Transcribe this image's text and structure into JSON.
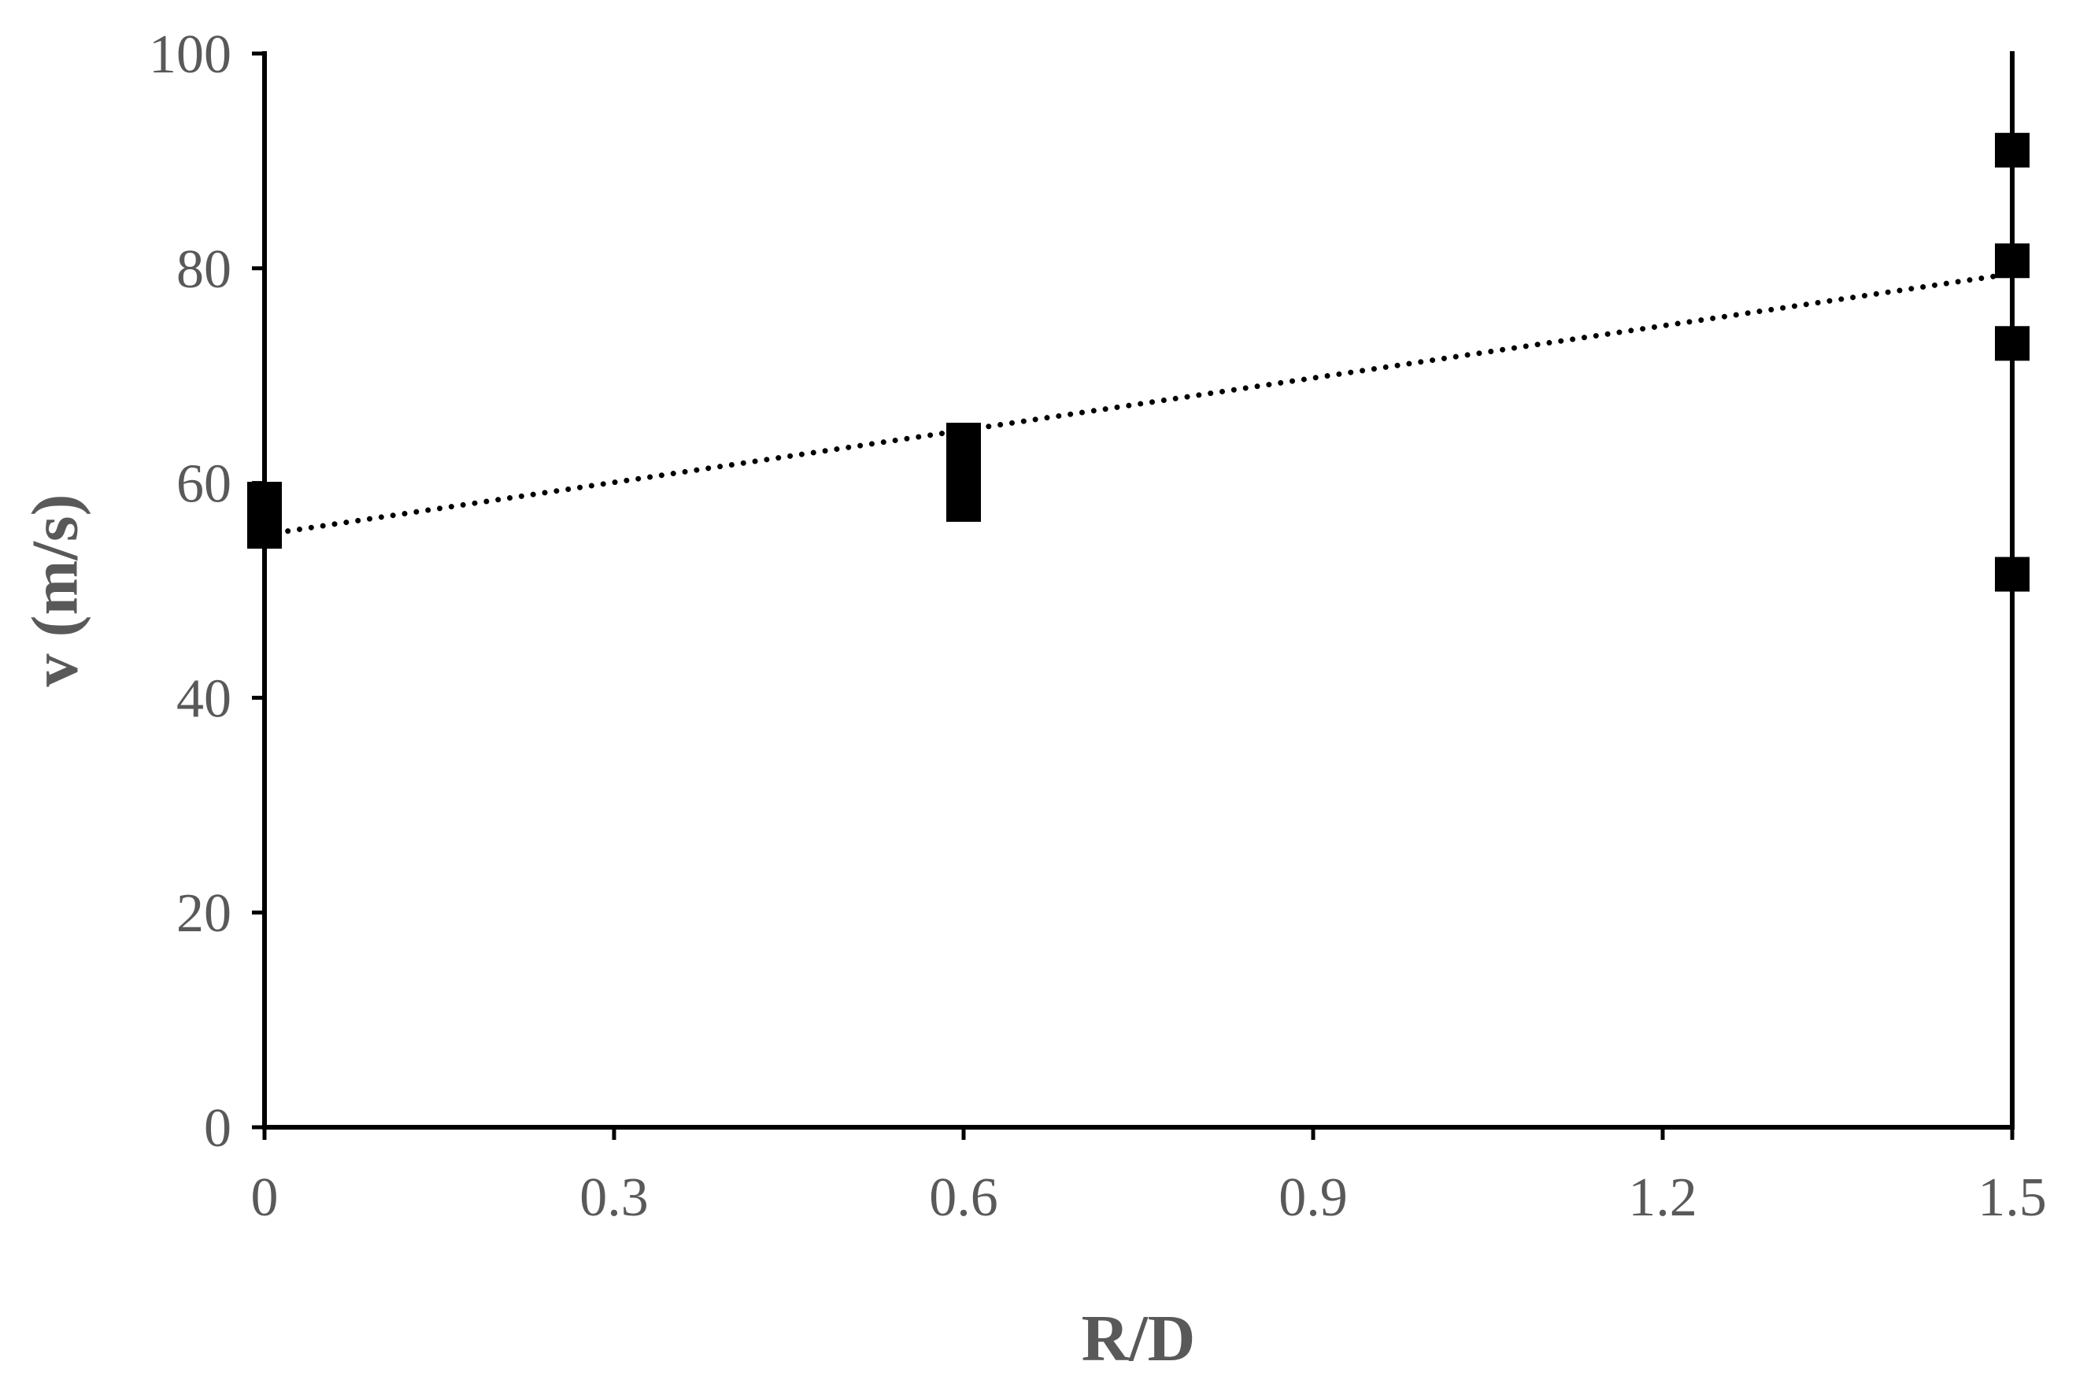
{
  "chart_data": {
    "type": "scatter",
    "title": "",
    "xlabel": "R/D",
    "ylabel": "v (m/s)",
    "xlim": [
      0,
      1.5
    ],
    "ylim": [
      0,
      100
    ],
    "xticks": [
      {
        "value": 0,
        "label": "0"
      },
      {
        "value": 0.3,
        "label": "0.3"
      },
      {
        "value": 0.6,
        "label": "0.6"
      },
      {
        "value": 0.9,
        "label": "0.9"
      },
      {
        "value": 1.2,
        "label": "1.2"
      },
      {
        "value": 1.5,
        "label": "1.5"
      }
    ],
    "yticks": [
      {
        "value": 0,
        "label": "0"
      },
      {
        "value": 20,
        "label": "20"
      },
      {
        "value": 40,
        "label": "40"
      },
      {
        "value": 60,
        "label": "60"
      },
      {
        "value": 80,
        "label": "80"
      },
      {
        "value": 100,
        "label": "100"
      }
    ],
    "grid": false,
    "legend": "none",
    "series": [
      {
        "marker": "square",
        "color": "#000000",
        "points": [
          {
            "x": 0,
            "y": 55.5
          },
          {
            "x": 0,
            "y": 56.5
          },
          {
            "x": 0,
            "y": 57.5
          },
          {
            "x": 0,
            "y": 58.5
          },
          {
            "x": 0.6,
            "y": 58.0
          },
          {
            "x": 0.6,
            "y": 59.5
          },
          {
            "x": 0.6,
            "y": 61.0
          },
          {
            "x": 0.6,
            "y": 62.5
          },
          {
            "x": 0.6,
            "y": 64.0
          },
          {
            "x": 1.5,
            "y": 91.0
          },
          {
            "x": 1.5,
            "y": 80.7
          },
          {
            "x": 1.5,
            "y": 73.0
          },
          {
            "x": 1.5,
            "y": 51.5
          }
        ]
      }
    ],
    "trendline": {
      "style": "dotted",
      "color": "#000000",
      "x": [
        0,
        1.5
      ],
      "y": [
        55.2,
        79.5
      ]
    },
    "colors": {
      "axis": "#000000",
      "text": "#595959",
      "marker": "#000000"
    }
  }
}
